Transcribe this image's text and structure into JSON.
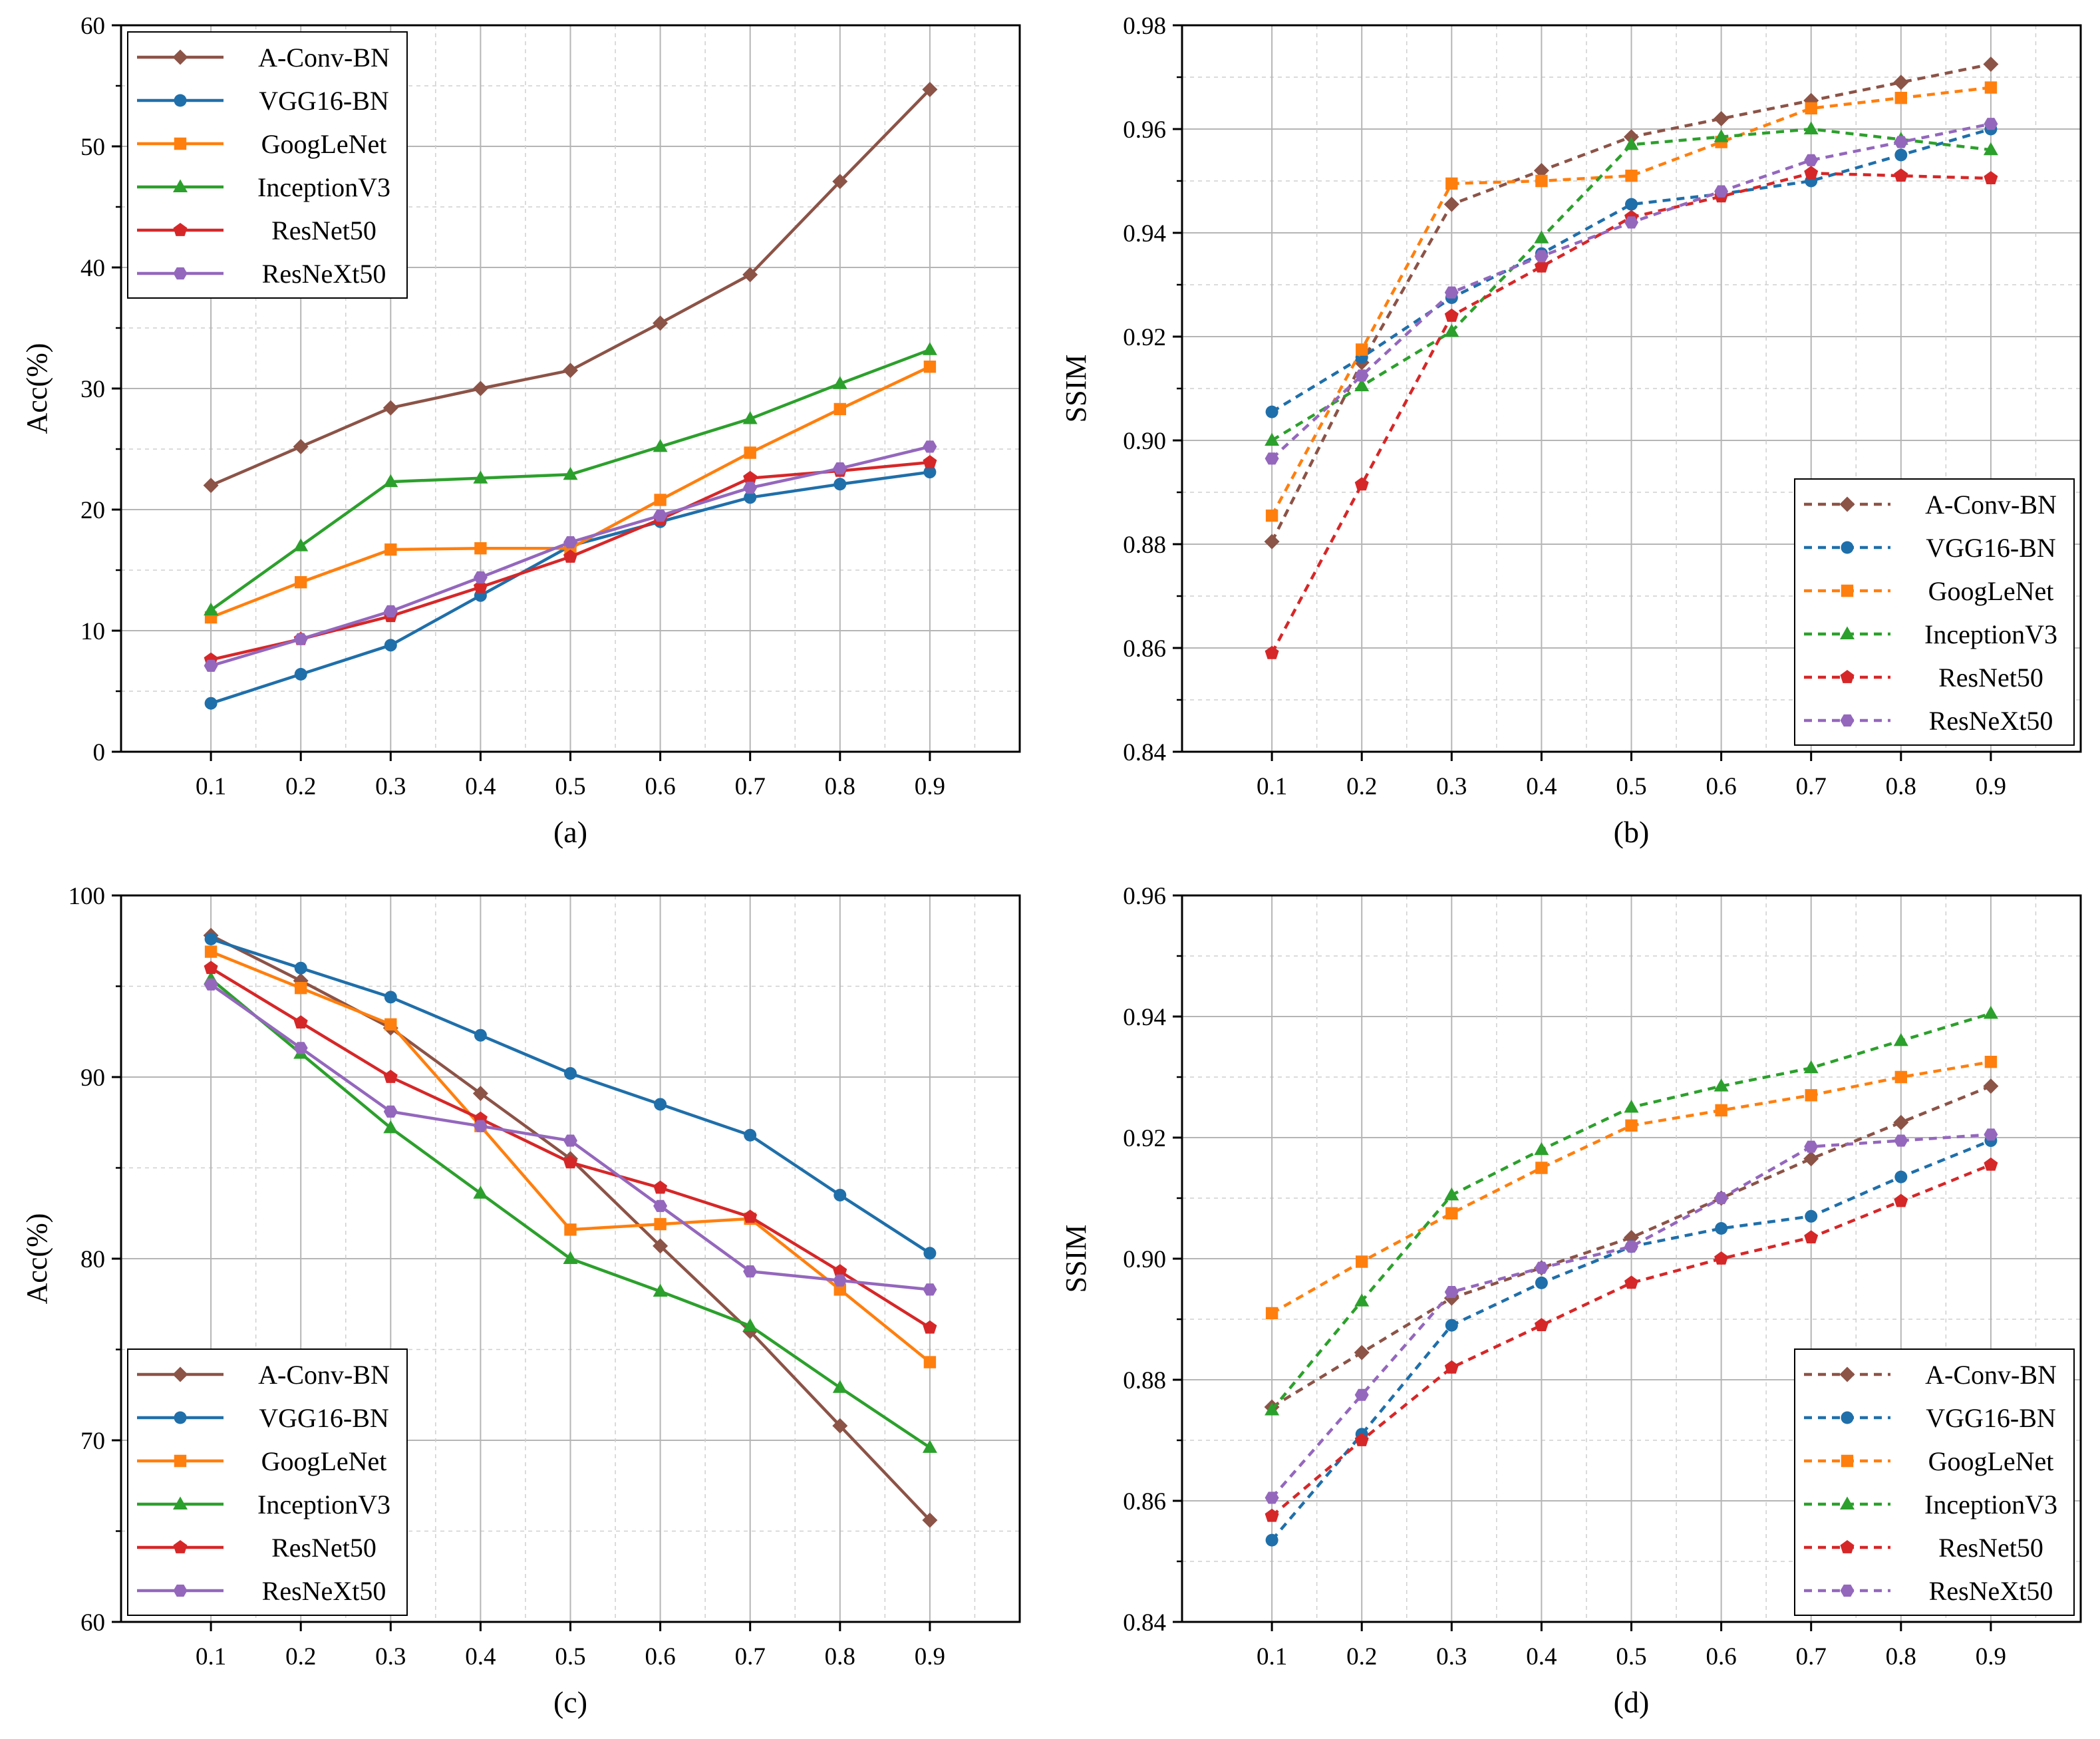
{
  "figure": {
    "series_names": [
      "A-Conv-BN",
      "VGG16-BN",
      "GoogLeNet",
      "InceptionV3",
      "ResNet50",
      "ResNeXt50"
    ],
    "series_colors": {
      "A-Conv-BN": "#8c5347",
      "VGG16-BN": "#1f6faa",
      "GoogLeNet": "#ff7f0e",
      "InceptionV3": "#2ca02c",
      "ResNet50": "#d62728",
      "ResNeXt50": "#9467bd"
    },
    "series_markers": {
      "A-Conv-BN": "diamond-marker",
      "VGG16-BN": "circle-marker",
      "GoogLeNet": "square-marker",
      "InceptionV3": "triangle-marker",
      "ResNet50": "pentagon-marker",
      "ResNeXt50": "hexagon-marker"
    }
  },
  "chart_data": [
    {
      "id": "a",
      "type": "line",
      "caption": "(a)",
      "ylabel": "Acc(%)",
      "xlabel": "",
      "x": [
        0.1,
        0.2,
        0.3,
        0.4,
        0.5,
        0.6,
        0.7,
        0.8,
        0.9
      ],
      "x_tick_labels": [
        "0.1",
        "0.2",
        "0.3",
        "0.4",
        "0.5",
        "0.6",
        "0.7",
        "0.8",
        "0.9"
      ],
      "ylim": [
        0,
        60
      ],
      "y_ticks": [
        0,
        10,
        20,
        30,
        40,
        50,
        60
      ],
      "y_tick_labels": [
        "0",
        "10",
        "20",
        "30",
        "40",
        "50",
        "60"
      ],
      "grid": true,
      "line_style": "solid",
      "legend_position": "top-left",
      "series": [
        {
          "name": "A-Conv-BN",
          "values": [
            22.0,
            25.2,
            28.4,
            30.0,
            31.5,
            35.4,
            39.4,
            47.1,
            54.7
          ]
        },
        {
          "name": "VGG16-BN",
          "values": [
            4.0,
            6.4,
            8.8,
            12.9,
            17.0,
            19.0,
            21.0,
            22.1,
            23.1
          ]
        },
        {
          "name": "GoogLeNet",
          "values": [
            11.1,
            14.0,
            16.7,
            16.8,
            16.8,
            20.8,
            24.7,
            28.3,
            31.8
          ]
        },
        {
          "name": "InceptionV3",
          "values": [
            11.7,
            17.0,
            22.3,
            22.6,
            22.9,
            25.2,
            27.5,
            30.4,
            33.2
          ]
        },
        {
          "name": "ResNet50",
          "values": [
            7.6,
            9.3,
            11.2,
            13.6,
            16.1,
            19.2,
            22.6,
            23.2,
            23.9
          ]
        },
        {
          "name": "ResNeXt50",
          "values": [
            7.1,
            9.3,
            11.6,
            14.4,
            17.3,
            19.5,
            21.8,
            23.4,
            25.2
          ]
        }
      ]
    },
    {
      "id": "b",
      "type": "line",
      "caption": "(b)",
      "ylabel": "SSIM",
      "xlabel": "",
      "x": [
        0.1,
        0.2,
        0.3,
        0.4,
        0.5,
        0.6,
        0.7,
        0.8,
        0.9
      ],
      "x_tick_labels": [
        "0.1",
        "0.2",
        "0.3",
        "0.4",
        "0.5",
        "0.6",
        "0.7",
        "0.8",
        "0.9"
      ],
      "ylim": [
        0.84,
        0.98
      ],
      "y_ticks": [
        0.84,
        0.86,
        0.88,
        0.9,
        0.92,
        0.94,
        0.96,
        0.98
      ],
      "y_tick_labels": [
        "0.84",
        "0.86",
        "0.88",
        "0.90",
        "0.92",
        "0.94",
        "0.96",
        "0.98"
      ],
      "grid": true,
      "line_style": "dashed",
      "legend_position": "bottom-right",
      "series": [
        {
          "name": "A-Conv-BN",
          "values": [
            0.8805,
            0.915,
            0.9455,
            0.952,
            0.9585,
            0.962,
            0.9655,
            0.969,
            0.9725
          ]
        },
        {
          "name": "VGG16-BN",
          "values": [
            0.9055,
            0.916,
            0.9275,
            0.936,
            0.9455,
            0.9475,
            0.95,
            0.955,
            0.96
          ]
        },
        {
          "name": "GoogLeNet",
          "values": [
            0.8855,
            0.9175,
            0.9495,
            0.95,
            0.951,
            0.9575,
            0.964,
            0.966,
            0.968
          ]
        },
        {
          "name": "InceptionV3",
          "values": [
            0.9,
            0.9105,
            0.921,
            0.939,
            0.957,
            0.9585,
            0.96,
            0.958,
            0.956
          ]
        },
        {
          "name": "ResNet50",
          "values": [
            0.859,
            0.8915,
            0.924,
            0.9335,
            0.943,
            0.947,
            0.9515,
            0.951,
            0.9505
          ]
        },
        {
          "name": "ResNeXt50",
          "values": [
            0.8965,
            0.9125,
            0.9285,
            0.9355,
            0.942,
            0.948,
            0.954,
            0.9575,
            0.961
          ]
        }
      ]
    },
    {
      "id": "c",
      "type": "line",
      "caption": "(c)",
      "ylabel": "Acc(%)",
      "xlabel": "",
      "x": [
        0.1,
        0.2,
        0.3,
        0.4,
        0.5,
        0.6,
        0.7,
        0.8,
        0.9
      ],
      "x_tick_labels": [
        "0.1",
        "0.2",
        "0.3",
        "0.4",
        "0.5",
        "0.6",
        "0.7",
        "0.8",
        "0.9"
      ],
      "ylim": [
        60,
        100
      ],
      "y_ticks": [
        60,
        70,
        80,
        90,
        100
      ],
      "y_tick_labels": [
        "60",
        "70",
        "80",
        "90",
        "100"
      ],
      "grid": true,
      "line_style": "solid",
      "legend_position": "bottom-left",
      "series": [
        {
          "name": "A-Conv-BN",
          "values": [
            97.8,
            95.3,
            92.7,
            89.1,
            85.5,
            80.7,
            76.0,
            70.8,
            65.6
          ]
        },
        {
          "name": "VGG16-BN",
          "values": [
            97.6,
            96.0,
            94.4,
            92.3,
            90.2,
            88.5,
            86.8,
            83.5,
            80.3
          ]
        },
        {
          "name": "GoogLeNet",
          "values": [
            96.9,
            94.9,
            92.9,
            87.3,
            81.6,
            81.9,
            82.2,
            78.3,
            74.3
          ]
        },
        {
          "name": "InceptionV3",
          "values": [
            95.4,
            91.3,
            87.2,
            83.6,
            80.0,
            78.2,
            76.3,
            72.9,
            69.6
          ]
        },
        {
          "name": "ResNet50",
          "values": [
            96.0,
            93.0,
            90.0,
            87.7,
            85.3,
            83.9,
            82.3,
            79.3,
            76.2
          ]
        },
        {
          "name": "ResNeXt50",
          "values": [
            95.1,
            91.6,
            88.1,
            87.3,
            86.5,
            82.9,
            79.3,
            78.8,
            78.3
          ]
        }
      ]
    },
    {
      "id": "d",
      "type": "line",
      "caption": "(d)",
      "ylabel": "SSIM",
      "xlabel": "",
      "x": [
        0.1,
        0.2,
        0.3,
        0.4,
        0.5,
        0.6,
        0.7,
        0.8,
        0.9
      ],
      "x_tick_labels": [
        "0.1",
        "0.2",
        "0.3",
        "0.4",
        "0.5",
        "0.6",
        "0.7",
        "0.8",
        "0.9"
      ],
      "ylim": [
        0.84,
        0.96
      ],
      "y_ticks": [
        0.84,
        0.86,
        0.88,
        0.9,
        0.92,
        0.94,
        0.96
      ],
      "y_tick_labels": [
        "0.84",
        "0.86",
        "0.88",
        "0.90",
        "0.92",
        "0.94",
        "0.96"
      ],
      "grid": true,
      "line_style": "dashed",
      "legend_position": "bottom-right",
      "series": [
        {
          "name": "A-Conv-BN",
          "values": [
            0.8755,
            0.8845,
            0.8935,
            0.8985,
            0.9035,
            0.91,
            0.9165,
            0.9225,
            0.9285
          ]
        },
        {
          "name": "VGG16-BN",
          "values": [
            0.8535,
            0.871,
            0.889,
            0.896,
            0.902,
            0.905,
            0.907,
            0.9135,
            0.9195
          ]
        },
        {
          "name": "GoogLeNet",
          "values": [
            0.891,
            0.8995,
            0.9075,
            0.915,
            0.922,
            0.9245,
            0.927,
            0.93,
            0.9325
          ]
        },
        {
          "name": "InceptionV3",
          "values": [
            0.875,
            0.893,
            0.9105,
            0.918,
            0.925,
            0.9285,
            0.9315,
            0.936,
            0.9405
          ]
        },
        {
          "name": "ResNet50",
          "values": [
            0.8575,
            0.87,
            0.882,
            0.889,
            0.896,
            0.9,
            0.9035,
            0.9095,
            0.9155
          ]
        },
        {
          "name": "ResNeXt50",
          "values": [
            0.8605,
            0.8775,
            0.8945,
            0.8985,
            0.902,
            0.91,
            0.9185,
            0.9195,
            0.9205
          ]
        }
      ]
    }
  ]
}
